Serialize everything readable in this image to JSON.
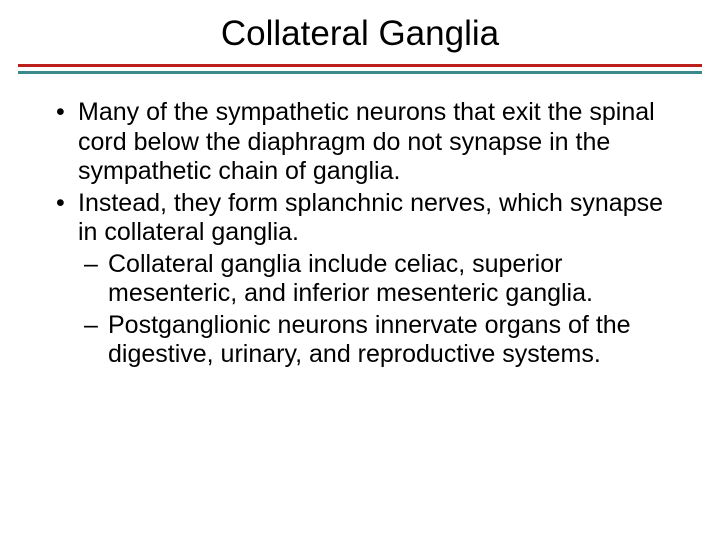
{
  "slide": {
    "title": "Collateral Ganglia",
    "title_fontsize": 35,
    "title_color": "#000000",
    "rule_top_color": "#bd1e1e",
    "rule_bottom_color": "#3a8a8a",
    "body_fontsize": 25,
    "body_color": "#000000",
    "background_color": "#ffffff",
    "bullets": [
      {
        "text": "Many of the sympathetic neurons that exit the spinal cord below the diaphragm do not synapse in the sympathetic chain of ganglia."
      },
      {
        "text": "Instead, they form splanchnic nerves, which synapse in collateral ganglia.",
        "children": [
          {
            "text": "Collateral ganglia include celiac, superior mesenteric, and inferior mesenteric ganglia."
          },
          {
            "text": "Postganglionic neurons innervate organs of the digestive, urinary, and reproductive systems."
          }
        ]
      }
    ]
  }
}
